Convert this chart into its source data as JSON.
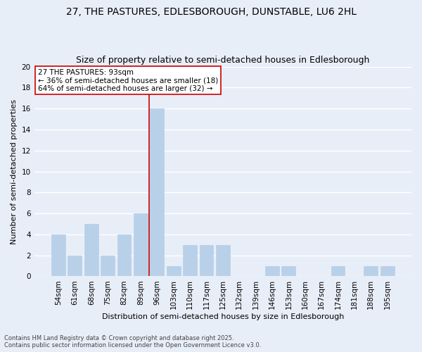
{
  "title": "27, THE PASTURES, EDLESBOROUGH, DUNSTABLE, LU6 2HL",
  "subtitle": "Size of property relative to semi-detached houses in Edlesborough",
  "xlabel": "Distribution of semi-detached houses by size in Edlesborough",
  "ylabel": "Number of semi-detached properties",
  "footnote1": "Contains HM Land Registry data © Crown copyright and database right 2025.",
  "footnote2": "Contains public sector information licensed under the Open Government Licence v3.0.",
  "categories": [
    "54sqm",
    "61sqm",
    "68sqm",
    "75sqm",
    "82sqm",
    "89sqm",
    "96sqm",
    "103sqm",
    "110sqm",
    "117sqm",
    "125sqm",
    "132sqm",
    "139sqm",
    "146sqm",
    "153sqm",
    "160sqm",
    "167sqm",
    "174sqm",
    "181sqm",
    "188sqm",
    "195sqm"
  ],
  "values": [
    4,
    2,
    5,
    2,
    4,
    6,
    16,
    1,
    3,
    3,
    3,
    0,
    0,
    1,
    1,
    0,
    0,
    1,
    0,
    1,
    1
  ],
  "bar_color": "#b8d0e8",
  "bar_edge_color": "#b8d0e8",
  "vline_color": "#cc0000",
  "annotation_text": "27 THE PASTURES: 93sqm\n← 36% of semi-detached houses are smaller (18)\n64% of semi-detached houses are larger (32) →",
  "annotation_box_color": "#ffffff",
  "annotation_box_edge": "#cc0000",
  "ylim": [
    0,
    20
  ],
  "yticks": [
    0,
    2,
    4,
    6,
    8,
    10,
    12,
    14,
    16,
    18,
    20
  ],
  "bg_color": "#e8eef8",
  "plot_bg_color": "#e8eef8",
  "grid_color": "#ffffff",
  "title_fontsize": 10,
  "subtitle_fontsize": 9,
  "xlabel_fontsize": 8,
  "ylabel_fontsize": 8,
  "tick_fontsize": 7.5,
  "annot_fontsize": 7.5,
  "footnote_fontsize": 6
}
